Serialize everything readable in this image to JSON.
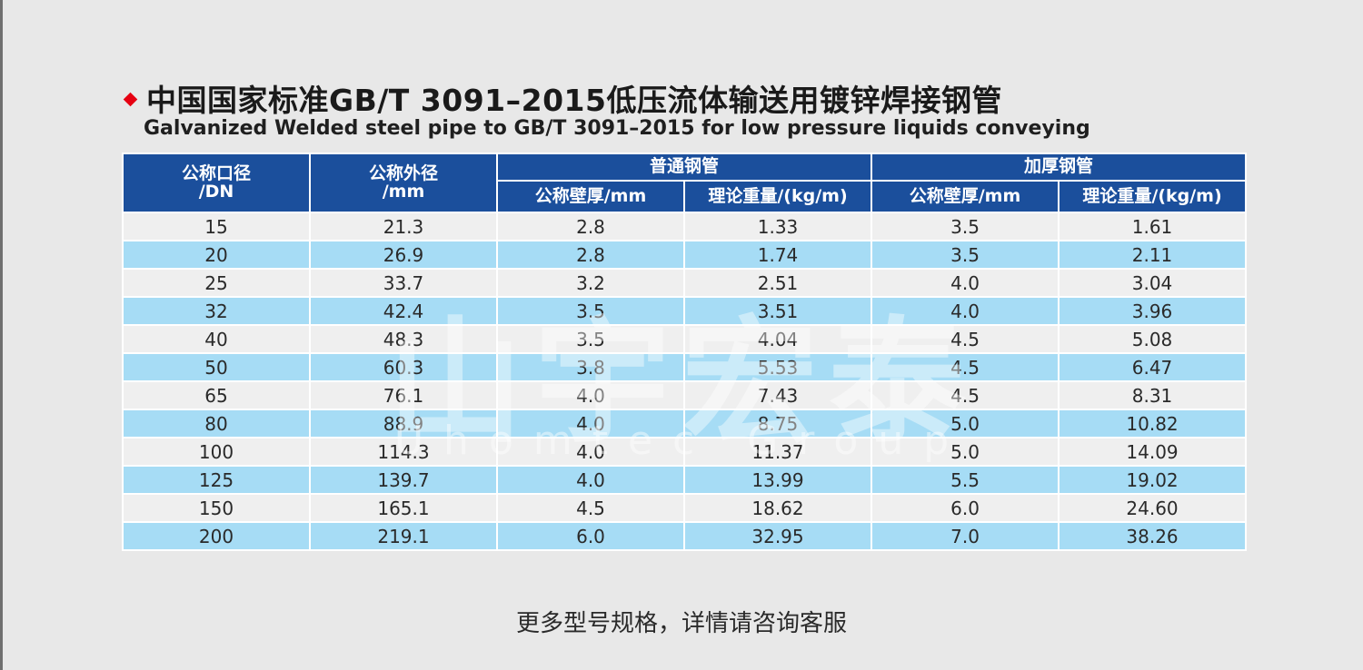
{
  "title_zh": "中国国家标准GB/T 3091–2015低压流体输送用镀锌焊接钢管",
  "title_en": "Galvanized Welded steel pipe to GB/T 3091–2015 for low pressure liquids conveying",
  "header": {
    "dn_line1": "公称口径",
    "dn_line2": "/DN",
    "od_line1": "公称外径",
    "od_line2": "/mm",
    "group_regular": "普通钢管",
    "group_thick": "加厚钢管",
    "wall": "公称壁厚/mm",
    "weight": "理论重量/(kg/m)"
  },
  "rows": [
    [
      "15",
      "21.3",
      "2.8",
      "1.33",
      "3.5",
      "1.61"
    ],
    [
      "20",
      "26.9",
      "2.8",
      "1.74",
      "3.5",
      "2.11"
    ],
    [
      "25",
      "33.7",
      "3.2",
      "2.51",
      "4.0",
      "3.04"
    ],
    [
      "32",
      "42.4",
      "3.5",
      "3.51",
      "4.0",
      "3.96"
    ],
    [
      "40",
      "48.3",
      "3.5",
      "4.04",
      "4.5",
      "5.08"
    ],
    [
      "50",
      "60.3",
      "3.8",
      "5.53",
      "4.5",
      "6.47"
    ],
    [
      "65",
      "76.1",
      "4.0",
      "7.43",
      "4.5",
      "8.31"
    ],
    [
      "80",
      "88.9",
      "4.0",
      "8.75",
      "5.0",
      "10.82"
    ],
    [
      "100",
      "114.3",
      "4.0",
      "11.37",
      "5.0",
      "14.09"
    ],
    [
      "125",
      "139.7",
      "4.0",
      "13.99",
      "5.5",
      "19.02"
    ],
    [
      "150",
      "165.1",
      "4.5",
      "18.62",
      "6.0",
      "24.60"
    ],
    [
      "200",
      "219.1",
      "6.0",
      "32.95",
      "7.0",
      "38.26"
    ]
  ],
  "watermark": {
    "zh": "山宇宏泰",
    "en": "Uhomtec Group"
  },
  "footer_note": "更多型号规格，详情请咨询客服",
  "colors": {
    "header_bg": "#1b4f9c",
    "row_light": "#efefef",
    "row_blue": "#a6dcf5",
    "accent_diamond": "#e60012"
  }
}
